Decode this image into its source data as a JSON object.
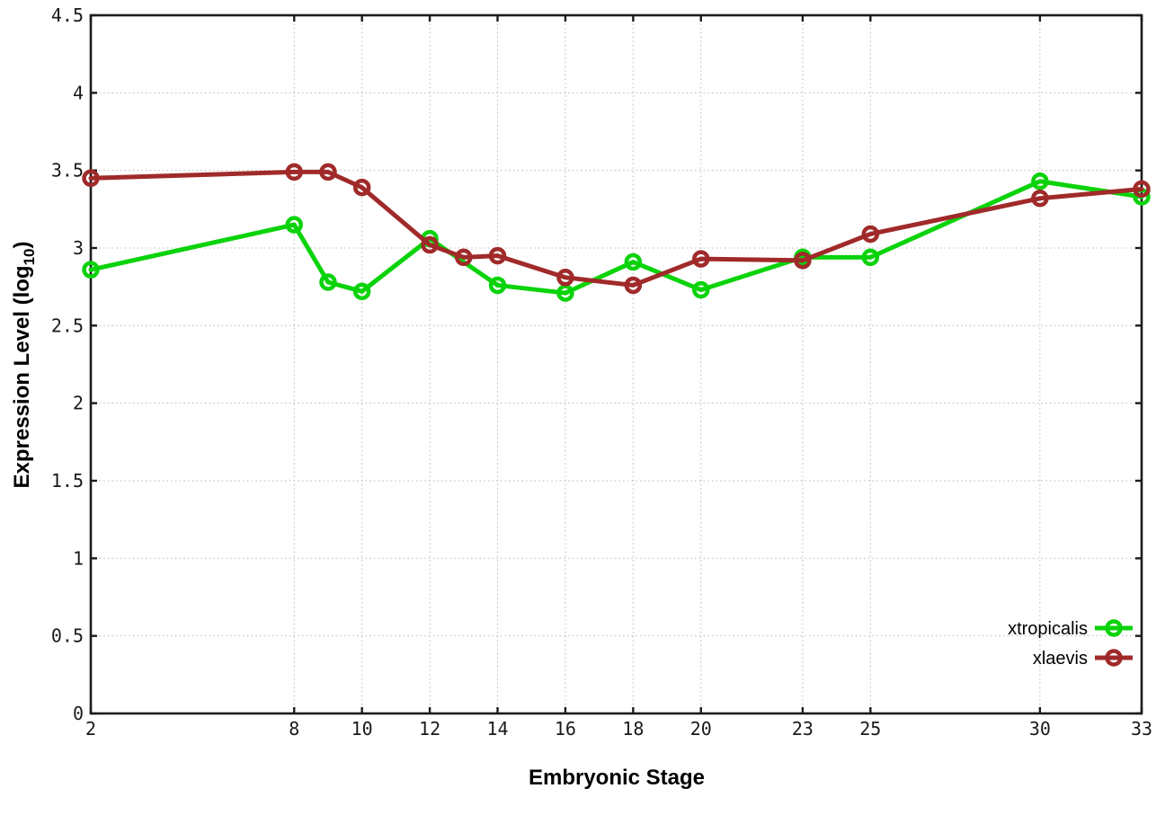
{
  "page": {
    "background": "#ffffff"
  },
  "chart_data": {
    "type": "line",
    "title": "",
    "xlabel": "Embryonic Stage",
    "ylabel": "Expression Level (log10)",
    "ylabel_parts": {
      "main": "Expression Level (log",
      "sub": "10",
      "close": ")"
    },
    "xlim": [
      2,
      33
    ],
    "ylim": [
      0,
      4.5
    ],
    "x_ticks": [
      2,
      8,
      10,
      12,
      14,
      16,
      18,
      20,
      23,
      25,
      30,
      33
    ],
    "x_tick_labels": [
      "2",
      "8",
      "10",
      "12",
      "14",
      "16",
      "18",
      "20",
      "23",
      "25",
      "30",
      "33"
    ],
    "y_ticks": [
      0,
      0.5,
      1,
      1.5,
      2,
      2.5,
      3,
      3.5,
      4,
      4.5
    ],
    "y_tick_labels": [
      "0",
      "0.5",
      "1",
      "1.5",
      "2",
      "2.5",
      "3",
      "3.5",
      "4",
      "4.5"
    ],
    "grid": true,
    "legend_position": "inside-bottom-right",
    "colors": {
      "axis": "#1c1c1c",
      "grid": "#b8b8b8",
      "text": "#000000"
    },
    "series": [
      {
        "name": "xtropicalis",
        "color": "#0bd30b",
        "marker": "open-circle",
        "x": [
          2,
          8,
          9,
          10,
          12,
          14,
          16,
          18,
          20,
          23,
          25,
          30,
          33
        ],
        "y": [
          2.86,
          3.15,
          2.78,
          2.72,
          3.06,
          2.76,
          2.71,
          2.91,
          2.73,
          2.94,
          2.94,
          3.43,
          3.33
        ]
      },
      {
        "name": "xlaevis",
        "color": "#a02a2a",
        "marker": "open-circle",
        "x": [
          2,
          8,
          9,
          10,
          12,
          13,
          14,
          16,
          18,
          20,
          23,
          25,
          30,
          33
        ],
        "y": [
          3.45,
          3.49,
          3.49,
          3.39,
          3.02,
          2.94,
          2.95,
          2.81,
          2.76,
          2.93,
          2.92,
          3.09,
          3.32,
          3.38
        ]
      }
    ]
  }
}
